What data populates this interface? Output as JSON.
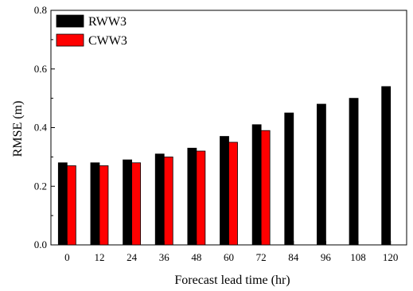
{
  "chart_data": {
    "type": "bar",
    "xlabel": "Forecast lead time (hr)",
    "ylabel": "RMSE (m)",
    "ylim": [
      0.0,
      0.8
    ],
    "y_ticks": [
      "0.0",
      "0.2",
      "0.4",
      "0.6",
      "0.8"
    ],
    "categories": [
      "0",
      "12",
      "24",
      "36",
      "48",
      "60",
      "72",
      "84",
      "96",
      "108",
      "120"
    ],
    "series": [
      {
        "name": "RWW3",
        "color": "#000000",
        "values": [
          0.28,
          0.28,
          0.29,
          0.31,
          0.33,
          0.37,
          0.41,
          0.45,
          0.48,
          0.5,
          0.54
        ]
      },
      {
        "name": "CWW3",
        "color": "#ff0000",
        "values": [
          0.27,
          0.27,
          0.28,
          0.3,
          0.32,
          0.35,
          0.39,
          null,
          null,
          null,
          null
        ]
      }
    ],
    "legend_position": "top-left",
    "grid": false
  }
}
